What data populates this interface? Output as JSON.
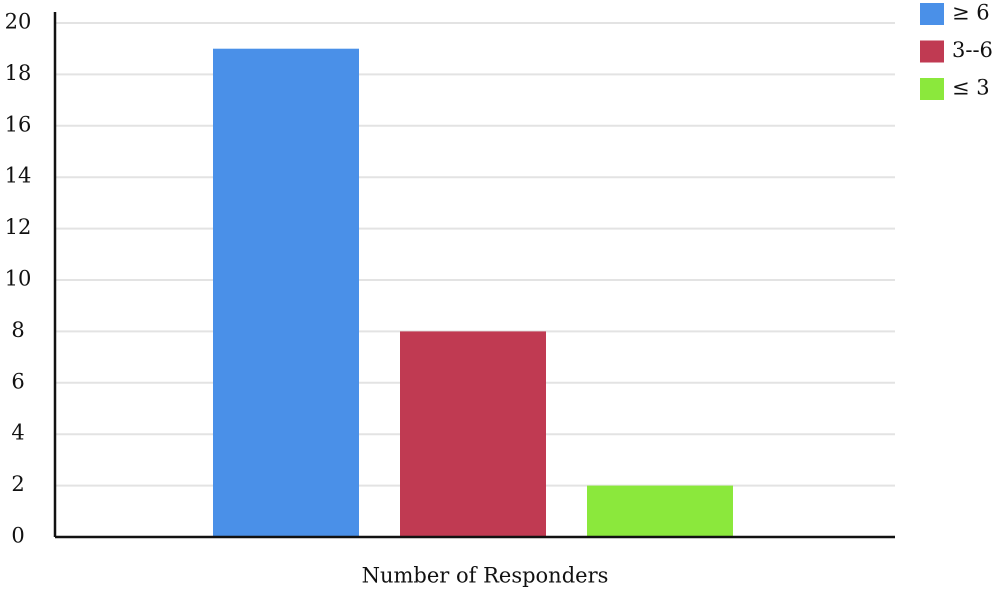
{
  "chart_data": {
    "type": "bar",
    "categories": [
      "Number of Responders"
    ],
    "series": [
      {
        "name": "≥ 6",
        "color": "#4a90e8",
        "values": [
          19
        ]
      },
      {
        "name": "3--6",
        "color": "#c03a52",
        "values": [
          8
        ]
      },
      {
        "name": "≤ 3",
        "color": "#8be83c",
        "values": [
          2
        ]
      }
    ],
    "ylim": [
      0,
      20
    ],
    "yticks": [
      0,
      2,
      4,
      6,
      8,
      10,
      12,
      14,
      16,
      18,
      20
    ],
    "grid": true,
    "legend": "top-right"
  }
}
